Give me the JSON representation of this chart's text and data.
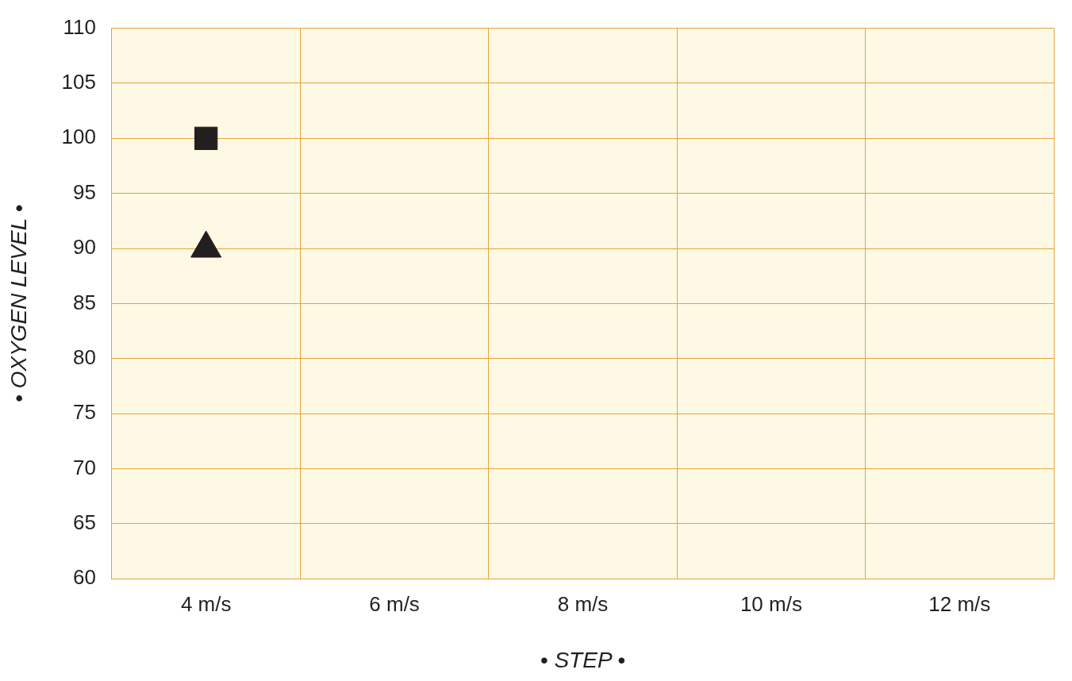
{
  "chart_data": {
    "type": "scatter",
    "xlabel": "• STEP •",
    "ylabel": "• OXYGEN LEVEL •",
    "categories": [
      "4 m/s",
      "6 m/s",
      "8 m/s",
      "10 m/s",
      "12 m/s"
    ],
    "series": [
      {
        "color": "#231f20",
        "marker": "square",
        "values": [
          100,
          null,
          null,
          null,
          null
        ]
      },
      {
        "color": "#231f20",
        "marker": "triangle",
        "values": [
          90,
          null,
          null,
          null,
          null
        ]
      }
    ],
    "ylim": [
      60,
      110
    ],
    "yticks": [
      60,
      65,
      70,
      75,
      80,
      85,
      90,
      95,
      100,
      105,
      110
    ],
    "grid": true,
    "legend": false
  }
}
